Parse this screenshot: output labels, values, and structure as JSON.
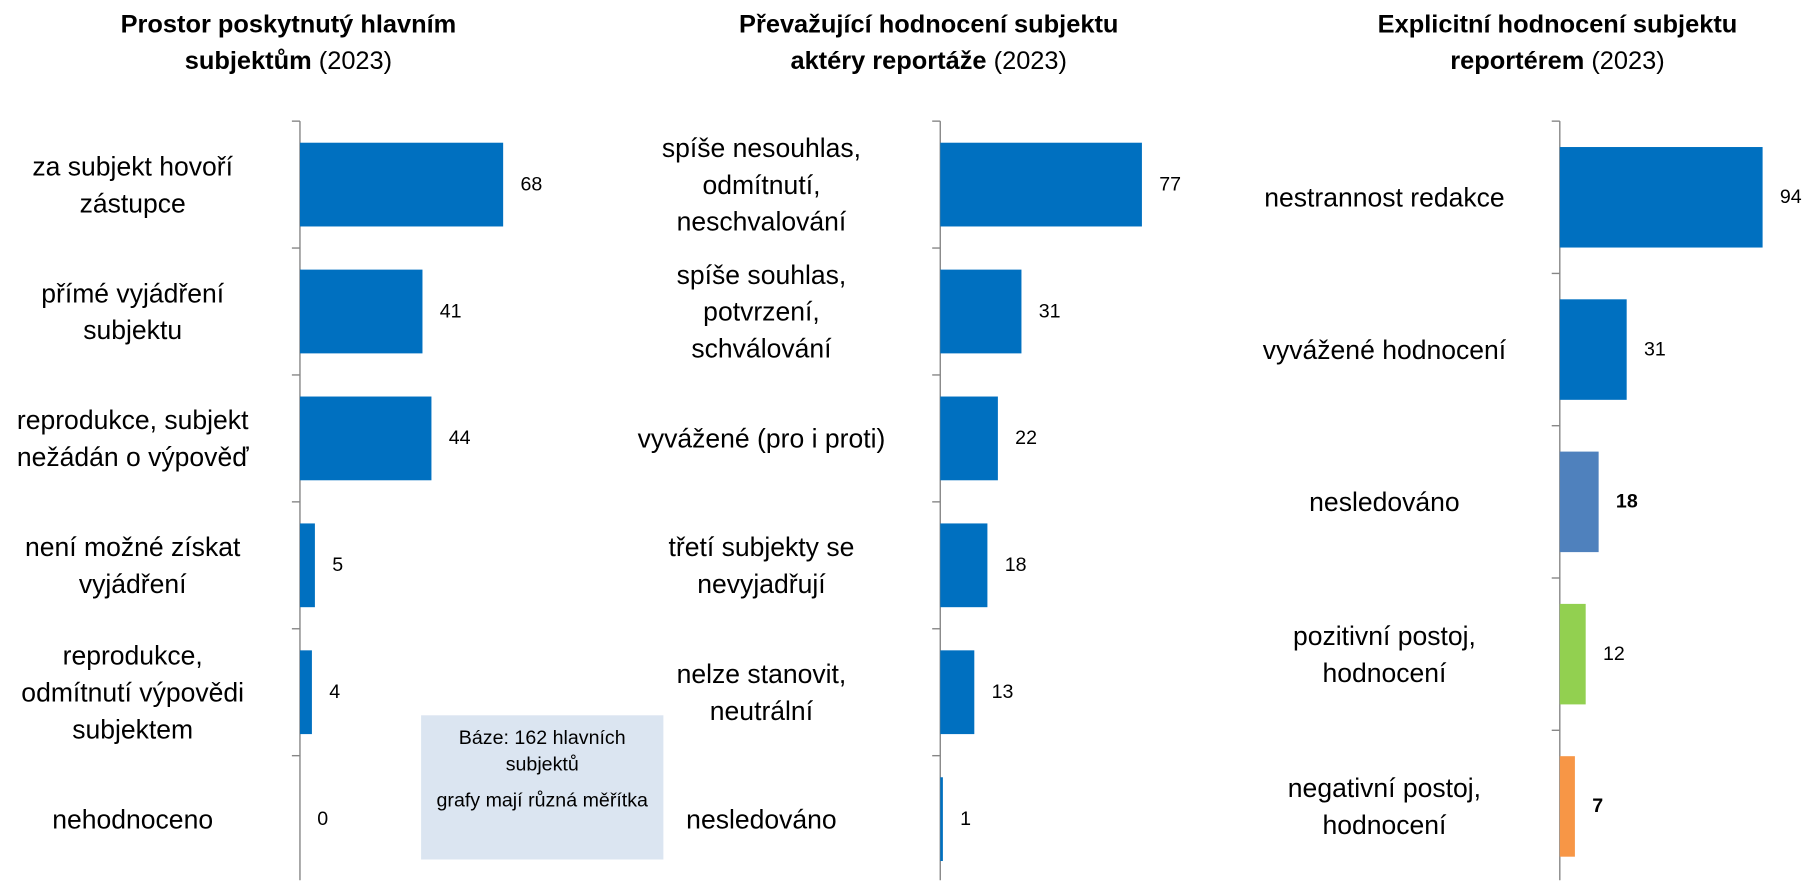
{
  "chart_data": [
    {
      "type": "bar",
      "title_bold": "Prostor poskytnutý hlavním\nsubjektům",
      "title_normal": "(2023)",
      "categories": [
        "za subjekt hovoří\nzástupce",
        "přímé vyjádření\nsubjektu",
        "reprodukce, subjekt\nnežádán o výpověď",
        "není možné získat\nvyjádření",
        "reprodukce,\nodmítnutí výpovědi\nsubjektem",
        "nehodnoceno"
      ],
      "values": [
        68,
        41,
        44,
        5,
        4,
        0
      ],
      "colors": [
        "#0070c0",
        "#0070c0",
        "#0070c0",
        "#0070c0",
        "#0070c0",
        "#0070c0"
      ],
      "xlim": [
        0,
        100
      ]
    },
    {
      "type": "bar",
      "title_bold": "Převažující hodnocení subjektu\naktéry reportáže",
      "title_normal": "(2023)",
      "categories": [
        "spíše nesouhlas,\nodmítnutí,\nneschvalování",
        "spíše souhlas,\npotvrzení,\nschválování",
        "vyvážené (pro i proti)",
        "třetí subjekty se\nnevyjadřují",
        "nelze stanovit,\nneutrální",
        "nesledováno"
      ],
      "values": [
        77,
        31,
        22,
        18,
        13,
        1
      ],
      "colors": [
        "#0070c0",
        "#0070c0",
        "#0070c0",
        "#0070c0",
        "#0070c0",
        "#0070c0"
      ],
      "xlim": [
        0,
        100
      ]
    },
    {
      "type": "bar",
      "title_bold": "Explicitní hodnocení subjektu\nreportérem",
      "title_normal": "(2023)",
      "categories": [
        "nestrannost redakce",
        "vyvážené hodnocení",
        "nesledováno",
        "pozitivní postoj,\nhodnocení",
        "negativní postoj,\nhodnocení"
      ],
      "values": [
        94,
        31,
        18,
        12,
        7
      ],
      "colors": [
        "#0070c0",
        "#0070c0",
        "#4f81bd",
        "#92d050",
        "#f79646"
      ],
      "value_label_bold": [
        false,
        false,
        true,
        false,
        true
      ],
      "xlim": [
        0,
        100
      ]
    }
  ],
  "note": [
    "Báze: 162 hlavních subjektů",
    "grafy mají různá měřítka"
  ]
}
